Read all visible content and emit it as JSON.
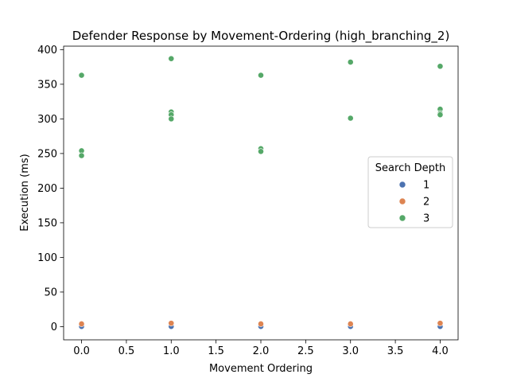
{
  "chart_data": {
    "type": "scatter",
    "title": "Defender Response by Movement-Ordering (high_branching_2)",
    "xlabel": "Movement Ordering",
    "ylabel": "Execution (ms)",
    "xlim": [
      -0.2,
      4.2
    ],
    "ylim": [
      -19,
      405
    ],
    "xticks": [
      "0.0",
      "0.5",
      "1.0",
      "1.5",
      "2.0",
      "2.5",
      "3.0",
      "3.5",
      "4.0"
    ],
    "xtick_values": [
      0,
      0.5,
      1,
      1.5,
      2,
      2.5,
      3,
      3.5,
      4
    ],
    "yticks": [
      "0",
      "50",
      "100",
      "150",
      "200",
      "250",
      "300",
      "350",
      "400"
    ],
    "ytick_values": [
      0,
      50,
      100,
      150,
      200,
      250,
      300,
      350,
      400
    ],
    "grid": false,
    "legend": {
      "title": "Search Depth",
      "position": "center-right"
    },
    "series": [
      {
        "name": "1",
        "color": "#4c72b0",
        "points": [
          [
            0,
            0.3
          ],
          [
            1,
            0.3
          ],
          [
            2,
            0.3
          ],
          [
            3,
            0.3
          ],
          [
            4,
            0.3
          ]
        ]
      },
      {
        "name": "2",
        "color": "#dd8452",
        "points": [
          [
            0,
            4
          ],
          [
            1,
            5
          ],
          [
            2,
            4
          ],
          [
            3,
            4
          ],
          [
            4,
            5
          ]
        ]
      },
      {
        "name": "3",
        "color": "#55a868",
        "points": [
          [
            0,
            363
          ],
          [
            0,
            254
          ],
          [
            0,
            247
          ],
          [
            1,
            387
          ],
          [
            1,
            310
          ],
          [
            1,
            306
          ],
          [
            1,
            300
          ],
          [
            2,
            363
          ],
          [
            2,
            257
          ],
          [
            2,
            253
          ],
          [
            3,
            382
          ],
          [
            3,
            301
          ],
          [
            4,
            376
          ],
          [
            4,
            314
          ],
          [
            4,
            308
          ],
          [
            4,
            306
          ]
        ]
      }
    ]
  }
}
